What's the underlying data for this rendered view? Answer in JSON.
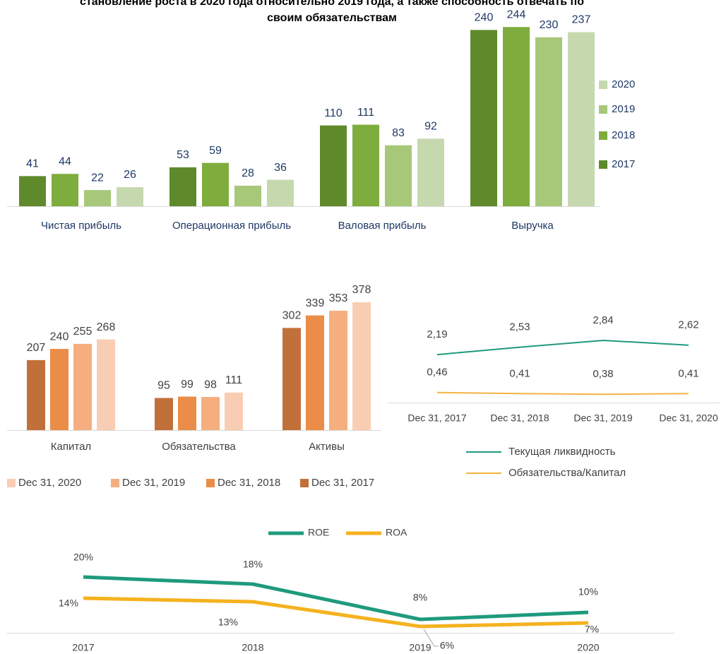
{
  "chart_data": [
    {
      "type": "bar",
      "title": [
        "становление роста в 2020 года относительно 2019 года, а также способность отвечать по",
        "своим обязательствам"
      ],
      "categories": [
        "Чистая прибыль",
        "Операционная прибыль",
        "Валовая прибыль",
        "Выручка"
      ],
      "legend": "right",
      "series": [
        {
          "name": "2017",
          "color": "#5f8a2c",
          "values": [
            41,
            53,
            110,
            240
          ]
        },
        {
          "name": "2018",
          "color": "#7fad3d",
          "values": [
            44,
            59,
            111,
            244
          ]
        },
        {
          "name": "2019",
          "color": "#a6c878",
          "values": [
            22,
            28,
            83,
            230
          ]
        },
        {
          "name": "2020",
          "color": "#c6d9ae",
          "values": [
            26,
            36,
            92,
            237
          ]
        }
      ]
    },
    {
      "type": "bar",
      "categories": [
        "Капитал",
        "Обязательства",
        "Активы"
      ],
      "legend": "bottom",
      "series": [
        {
          "name": "Dec 31, 2017",
          "color": "#c2703a",
          "values": [
            207,
            95,
            302
          ]
        },
        {
          "name": "Dec 31, 2018",
          "color": "#eb8d48",
          "values": [
            240,
            99,
            339
          ]
        },
        {
          "name": "Dec 31, 2019",
          "color": "#f5ae80",
          "values": [
            255,
            98,
            353
          ]
        },
        {
          "name": "Dec 31, 2020",
          "color": "#f9cdb3",
          "values": [
            268,
            111,
            378
          ]
        }
      ]
    },
    {
      "type": "line",
      "categories": [
        "Dec 31, 2017",
        "Dec 31, 2018",
        "Dec 31, 2019",
        "Dec 31, 2020"
      ],
      "legend": "bottom",
      "series": [
        {
          "name": "Текущая ликвидность",
          "color": "#1f9a7d",
          "values": [
            2.19,
            2.53,
            2.84,
            2.62
          ],
          "value_labels": [
            "2,19",
            "2,53",
            "2,84",
            "2,62"
          ]
        },
        {
          "name": "Обязательства/Капитал",
          "color": "#f5b342",
          "values": [
            0.46,
            0.41,
            0.38,
            0.41
          ],
          "value_labels": [
            "0,46",
            "0,41",
            "0,38",
            "0,41"
          ]
        }
      ]
    },
    {
      "type": "line",
      "categories": [
        "2017",
        "2018",
        "2019",
        "2020"
      ],
      "legend": "top",
      "series": [
        {
          "name": "ROE",
          "color": "#1f9a7d",
          "values": [
            20,
            18,
            8,
            10
          ],
          "value_labels": [
            "20%",
            "18%",
            "8%",
            "10%"
          ]
        },
        {
          "name": "ROA",
          "color": "#f5b21f",
          "values": [
            14,
            13,
            6,
            7
          ],
          "value_labels": [
            "14%",
            "13%",
            "6%",
            "7%"
          ]
        }
      ]
    }
  ]
}
